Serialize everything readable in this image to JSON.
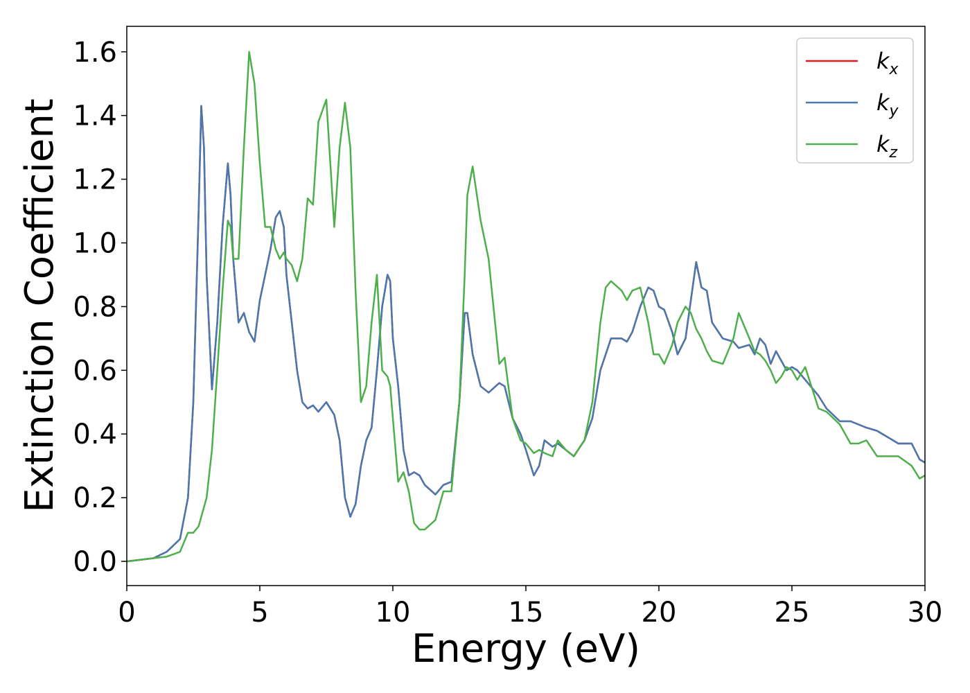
{
  "chart_data": {
    "type": "line",
    "xlabel": "Energy (eV)",
    "ylabel": "Extinction Coefficient",
    "xlim": [
      0,
      30
    ],
    "ylim": [
      -0.076,
      1.68
    ],
    "xticks": [
      0,
      5,
      10,
      15,
      20,
      25,
      30
    ],
    "yticks": [
      {
        "value": 0,
        "label": "0.0"
      },
      0.2,
      0.4,
      0.6,
      0.8,
      {
        "value": 1,
        "label": "1.0"
      },
      1.2,
      1.4,
      1.6
    ],
    "legend": "upper right",
    "x": [
      0,
      1,
      1.5,
      2,
      2.3,
      2.5,
      2.7,
      2.8,
      2.9,
      3.0,
      3.2,
      3.4,
      3.6,
      3.8,
      3.9,
      4.0,
      4.2,
      4.4,
      4.6,
      4.8,
      5.0,
      5.2,
      5.4,
      5.6,
      5.75,
      5.9,
      6.0,
      6.2,
      6.4,
      6.6,
      6.8,
      7.0,
      7.2,
      7.5,
      7.8,
      8.0,
      8.2,
      8.4,
      8.6,
      8.8,
      9.0,
      9.2,
      9.4,
      9.6,
      9.8,
      9.9,
      10.0,
      10.2,
      10.4,
      10.6,
      10.8,
      11.0,
      11.2,
      11.6,
      11.9,
      12.2,
      12.5,
      12.7,
      12.8,
      13.0,
      13.3,
      13.6,
      14.0,
      14.2,
      14.5,
      14.8,
      15.0,
      15.3,
      15.5,
      15.7,
      16.0,
      16.2,
      16.5,
      16.8,
      17.2,
      17.5,
      17.8,
      18.0,
      18.2,
      18.6,
      18.8,
      19.0,
      19.3,
      19.6,
      19.8,
      20.0,
      20.2,
      20.5,
      20.7,
      21.0,
      21.2,
      21.4,
      21.6,
      21.8,
      22.0,
      22.4,
      22.8,
      23.0,
      23.4,
      23.6,
      23.8,
      24.0,
      24.2,
      24.4,
      24.6,
      24.8,
      25.0,
      25.2,
      25.5,
      26.0,
      26.3,
      26.8,
      27.2,
      27.5,
      27.8,
      28.2,
      28.6,
      29.0,
      29.5,
      29.8,
      30
    ],
    "series": [
      {
        "name": "kx",
        "color": "#e41a1c",
        "values": [
          0,
          0.01,
          0.03,
          0.07,
          0.2,
          0.5,
          1.1,
          1.43,
          1.3,
          0.9,
          0.54,
          0.75,
          1.05,
          1.25,
          1.15,
          0.95,
          0.75,
          0.78,
          0.72,
          0.69,
          0.82,
          0.9,
          0.98,
          1.08,
          1.1,
          1.05,
          0.9,
          0.75,
          0.6,
          0.5,
          0.48,
          0.49,
          0.47,
          0.5,
          0.46,
          0.38,
          0.2,
          0.14,
          0.18,
          0.3,
          0.38,
          0.42,
          0.6,
          0.8,
          0.9,
          0.88,
          0.7,
          0.55,
          0.35,
          0.27,
          0.28,
          0.27,
          0.24,
          0.21,
          0.24,
          0.25,
          0.5,
          0.78,
          0.78,
          0.65,
          0.55,
          0.53,
          0.56,
          0.55,
          0.45,
          0.4,
          0.35,
          0.27,
          0.3,
          0.38,
          0.36,
          0.37,
          0.35,
          0.33,
          0.38,
          0.45,
          0.6,
          0.65,
          0.7,
          0.7,
          0.69,
          0.72,
          0.8,
          0.86,
          0.85,
          0.8,
          0.79,
          0.72,
          0.65,
          0.7,
          0.82,
          0.94,
          0.86,
          0.85,
          0.75,
          0.7,
          0.69,
          0.67,
          0.68,
          0.65,
          0.7,
          0.68,
          0.62,
          0.66,
          0.63,
          0.6,
          0.61,
          0.6,
          0.57,
          0.52,
          0.48,
          0.44,
          0.44,
          0.43,
          0.42,
          0.41,
          0.39,
          0.37,
          0.37,
          0.32,
          0.31
        ]
      },
      {
        "name": "ky",
        "color": "#4878b0",
        "values": [
          0,
          0.01,
          0.03,
          0.07,
          0.2,
          0.5,
          1.1,
          1.43,
          1.3,
          0.9,
          0.54,
          0.75,
          1.05,
          1.25,
          1.15,
          0.95,
          0.75,
          0.78,
          0.72,
          0.69,
          0.82,
          0.9,
          0.98,
          1.08,
          1.1,
          1.05,
          0.9,
          0.75,
          0.6,
          0.5,
          0.48,
          0.49,
          0.47,
          0.5,
          0.46,
          0.38,
          0.2,
          0.14,
          0.18,
          0.3,
          0.38,
          0.42,
          0.6,
          0.8,
          0.9,
          0.88,
          0.7,
          0.55,
          0.35,
          0.27,
          0.28,
          0.27,
          0.24,
          0.21,
          0.24,
          0.25,
          0.5,
          0.78,
          0.78,
          0.65,
          0.55,
          0.53,
          0.56,
          0.55,
          0.45,
          0.4,
          0.35,
          0.27,
          0.3,
          0.38,
          0.36,
          0.37,
          0.35,
          0.33,
          0.38,
          0.45,
          0.6,
          0.65,
          0.7,
          0.7,
          0.69,
          0.72,
          0.8,
          0.86,
          0.85,
          0.8,
          0.79,
          0.72,
          0.65,
          0.7,
          0.82,
          0.94,
          0.86,
          0.85,
          0.75,
          0.7,
          0.69,
          0.67,
          0.68,
          0.65,
          0.7,
          0.68,
          0.62,
          0.66,
          0.63,
          0.6,
          0.61,
          0.6,
          0.57,
          0.52,
          0.48,
          0.44,
          0.44,
          0.43,
          0.42,
          0.41,
          0.39,
          0.37,
          0.37,
          0.32,
          0.31
        ]
      },
      {
        "name": "kz",
        "color": "#4daf4a",
        "values": [
          0,
          0.01,
          0.015,
          0.03,
          0.09,
          0.09,
          0.11,
          0.14,
          0.17,
          0.2,
          0.35,
          0.6,
          0.85,
          1.07,
          1.05,
          0.95,
          0.95,
          1.3,
          1.6,
          1.5,
          1.25,
          1.05,
          1.05,
          0.98,
          0.95,
          0.97,
          0.95,
          0.93,
          0.88,
          0.95,
          1.14,
          1.12,
          1.38,
          1.45,
          1.05,
          1.3,
          1.44,
          1.3,
          0.85,
          0.5,
          0.55,
          0.75,
          0.9,
          0.6,
          0.58,
          0.55,
          0.45,
          0.25,
          0.28,
          0.22,
          0.12,
          0.1,
          0.1,
          0.13,
          0.22,
          0.22,
          0.5,
          0.9,
          1.15,
          1.24,
          1.07,
          0.95,
          0.62,
          0.64,
          0.45,
          0.38,
          0.37,
          0.34,
          0.35,
          0.34,
          0.33,
          0.38,
          0.35,
          0.33,
          0.38,
          0.5,
          0.75,
          0.86,
          0.88,
          0.85,
          0.82,
          0.85,
          0.86,
          0.75,
          0.65,
          0.65,
          0.62,
          0.68,
          0.75,
          0.8,
          0.78,
          0.73,
          0.7,
          0.66,
          0.63,
          0.62,
          0.7,
          0.78,
          0.7,
          0.66,
          0.65,
          0.63,
          0.6,
          0.56,
          0.58,
          0.61,
          0.6,
          0.57,
          0.61,
          0.48,
          0.47,
          0.43,
          0.37,
          0.37,
          0.38,
          0.33,
          0.33,
          0.33,
          0.3,
          0.26,
          0.27
        ]
      }
    ]
  }
}
